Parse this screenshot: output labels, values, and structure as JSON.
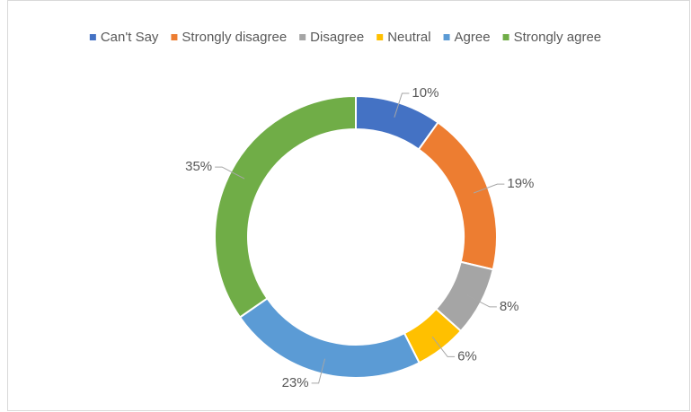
{
  "chart_data": {
    "type": "donut",
    "categories": [
      "Can't Say",
      "Strongly disagree",
      "Disagree",
      "Neutral",
      "Agree",
      "Strongly agree"
    ],
    "values": [
      10,
      19,
      8,
      6,
      23,
      35
    ],
    "value_labels": [
      "10%",
      "19%",
      "8%",
      "6%",
      "23%",
      "35%"
    ],
    "colors": [
      "#4472c4",
      "#ed7d31",
      "#a5a5a5",
      "#ffc000",
      "#5b9bd5",
      "#70ad47"
    ],
    "legend": "top"
  }
}
